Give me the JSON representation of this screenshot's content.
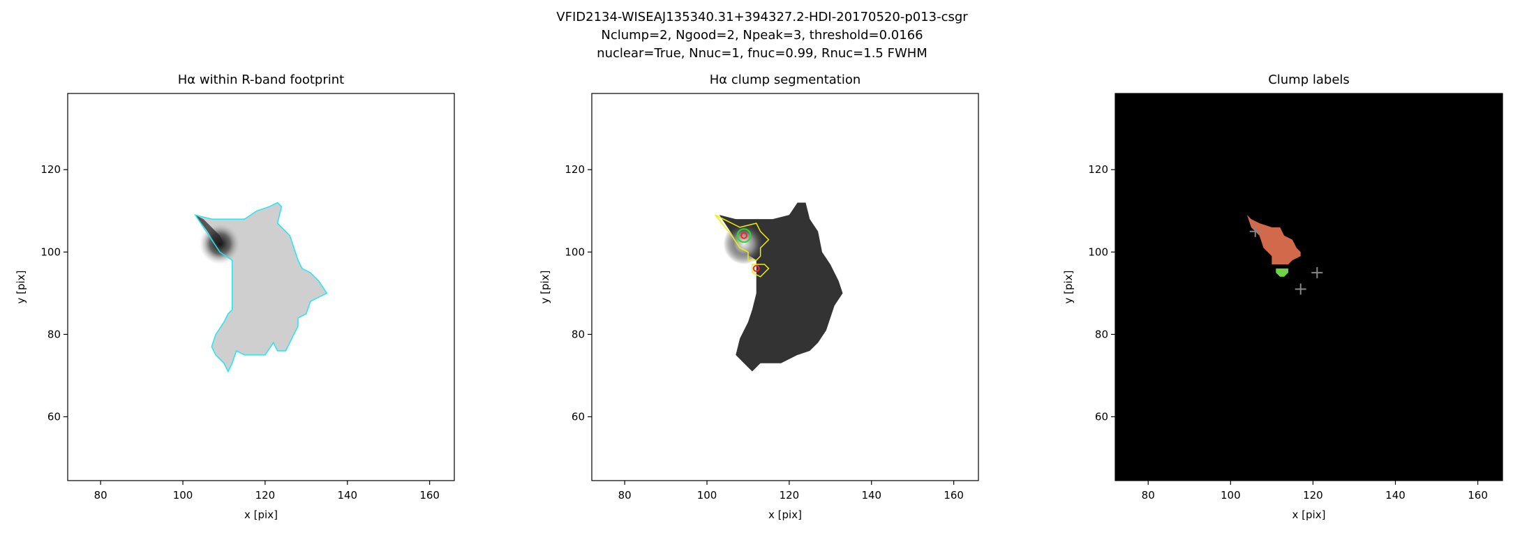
{
  "suptitle": [
    "VFID2134-WISEAJ135340.31+394327.2-HDI-20170520-p013-csgr",
    "Nclump=2, Ngood=2, Npeak=3, threshold=0.0166",
    "nuclear=True, Nnuc=1, fnuc=0.99, Rnuc=1.5 FWHM"
  ],
  "chart_data": [
    {
      "type": "image",
      "title": "Hα within R-band footprint",
      "xlabel": "x [pix]",
      "ylabel": "y [pix]",
      "xlim": [
        72,
        166
      ],
      "ylim": [
        44.5,
        138.5
      ],
      "xticks": [
        80,
        100,
        120,
        140,
        160
      ],
      "yticks": [
        60,
        80,
        100,
        120
      ],
      "background": "#ffffff"
    },
    {
      "type": "image",
      "title": "Hα clump segmentation",
      "xlabel": "x [pix]",
      "ylabel": "y [pix]",
      "xlim": [
        72,
        166
      ],
      "ylim": [
        44.5,
        138.5
      ],
      "xticks": [
        80,
        100,
        120,
        140,
        160
      ],
      "yticks": [
        60,
        80,
        100,
        120
      ],
      "background": "#ffffff",
      "markers": {
        "x": [
          109,
          112
        ],
        "y": [
          104,
          96
        ],
        "color": "#ff2020"
      }
    },
    {
      "type": "image",
      "title": "Clump labels",
      "xlabel": "x [pix]",
      "ylabel": "y [pix]",
      "xlim": [
        72,
        166
      ],
      "ylim": [
        44.5,
        138.5
      ],
      "xticks": [
        80,
        100,
        120,
        140,
        160
      ],
      "yticks": [
        60,
        80,
        100,
        120
      ],
      "background": "#000000",
      "markers": {
        "x": [
          106,
          117,
          121
        ],
        "y": [
          105,
          91,
          95
        ],
        "color": "#888888"
      }
    }
  ]
}
